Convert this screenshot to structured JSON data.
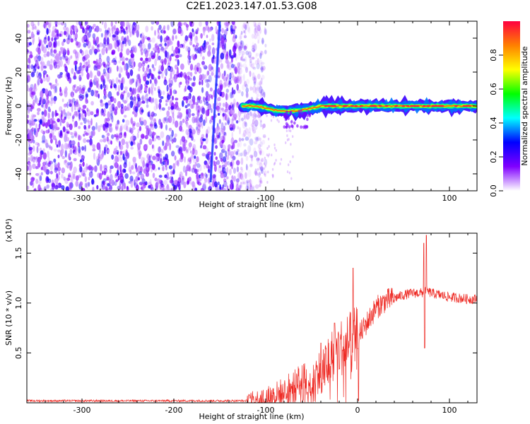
{
  "title": "C2E1.2023.147.01.53.G08",
  "colors": {
    "snr_line": "#ee2a24",
    "track": "#2030ff"
  },
  "chart_data": [
    {
      "type": "heatmap",
      "xlabel": "Height of straight line (km)",
      "ylabel": "Frequency (Hz)",
      "xlim": [
        -360,
        130
      ],
      "ylim": [
        -50,
        50
      ],
      "xticks": [
        -300,
        -200,
        -100,
        0,
        100
      ],
      "yticks": [
        -40,
        -20,
        0,
        20,
        40
      ],
      "colorbar": {
        "label": "Normalized spectral amplitude",
        "range": [
          0,
          1
        ],
        "ticks": [
          "0.0",
          "0.2",
          "0.4",
          "0.6",
          "0.8"
        ],
        "tick_values": [
          0,
          0.2,
          0.4,
          0.6,
          0.8
        ],
        "colormap": [
          "#ffffff",
          "#8000ff",
          "#0000ff",
          "#00ffff",
          "#00ff00",
          "#ffff00",
          "#ff8000",
          "#ff0040"
        ]
      },
      "features": {
        "noise_region_x": [
          -360,
          -110
        ],
        "signal_line_x": [
          -125,
          130
        ],
        "signal_line_freq": 0,
        "diagonal_track": {
          "x": [
            -160,
            -150
          ],
          "y": [
            -45,
            50
          ]
        }
      },
      "grid": false
    },
    {
      "type": "line",
      "xlabel": "Height of straight line (km)",
      "ylabel": "SNR (10 * v/v)",
      "y_multiplier": "(x10⁴)",
      "xlim": [
        -360,
        130
      ],
      "ylim": [
        0,
        1.7
      ],
      "xticks": [
        -300,
        -200,
        -100,
        0,
        100
      ],
      "yticks": [
        0.5,
        1.0,
        1.5
      ],
      "ytick_labels": [
        "0.5",
        "1.0",
        "1.5"
      ],
      "series": [
        {
          "x": [
            -360,
            -300,
            -200,
            -120,
            -100,
            -80,
            -60,
            -50,
            -40,
            -30,
            -20,
            -10,
            0,
            10,
            20,
            30,
            40,
            50,
            60,
            70,
            75,
            80,
            90,
            100,
            110,
            120,
            130
          ],
          "y": [
            0.02,
            0.02,
            0.02,
            0.02,
            0.04,
            0.1,
            0.2,
            0.25,
            0.3,
            0.45,
            0.55,
            0.6,
            0.65,
            0.8,
            0.95,
            1.02,
            1.05,
            1.08,
            1.1,
            1.1,
            1.12,
            1.1,
            1.08,
            1.06,
            1.05,
            1.04,
            1.04
          ]
        }
      ],
      "spikes": [
        {
          "x": -40,
          "y": 0.6
        },
        {
          "x": -25,
          "y": 0.8
        },
        {
          "x": -5,
          "y": 1.35
        },
        {
          "x": 1,
          "y": 0.02
        },
        {
          "x": 72,
          "y": 1.6
        },
        {
          "x": 75,
          "y": 1.68
        },
        {
          "x": 73,
          "y": 0.55
        }
      ],
      "grid": false
    }
  ]
}
